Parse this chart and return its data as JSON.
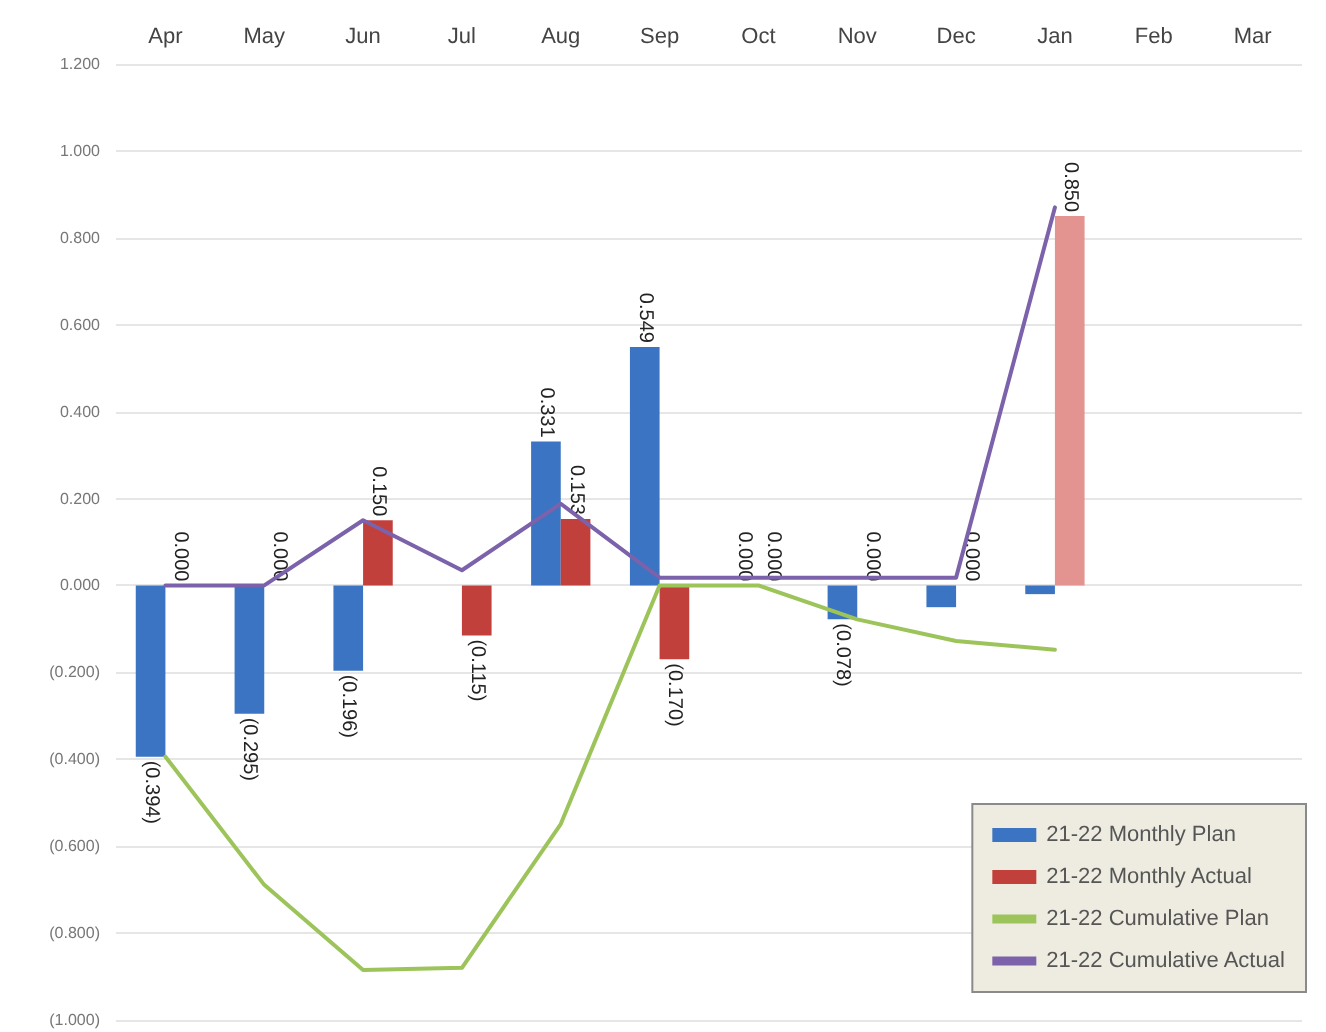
{
  "chart_data": {
    "type": "bar",
    "categories": [
      "Apr",
      "May",
      "Jun",
      "Jul",
      "Aug",
      "Sep",
      "Oct",
      "Nov",
      "Dec",
      "Jan",
      "Feb",
      "Mar"
    ],
    "series": [
      {
        "name": "21-22 Monthly Plan",
        "color": "#3b74c2",
        "values": [
          -0.394,
          -0.295,
          -0.196,
          null,
          0.331,
          0.549,
          0.0,
          -0.078,
          -0.05,
          -0.02,
          null,
          null
        ],
        "value_labels": [
          "(0.394)",
          "(0.295)",
          "(0.196)",
          null,
          "0.331",
          "0.549",
          "0.000",
          "(0.078)",
          null,
          null,
          null,
          null
        ]
      },
      {
        "name": "21-22 Monthly Actual",
        "color": "#c2403c",
        "colors": [
          "#c2403c",
          "#c2403c",
          "#c2403c",
          "#c2403c",
          "#c2403c",
          "#c2403c",
          "#c2403c",
          "#c2403c",
          "#c2403c",
          "#e39490",
          "#c2403c",
          "#c2403c"
        ],
        "values": [
          0.0,
          0.0,
          0.15,
          -0.115,
          0.153,
          -0.17,
          0.0,
          0.0,
          0.0,
          0.85,
          null,
          null
        ],
        "value_labels": [
          "0.000",
          "0.000",
          "0.150",
          "(0.115)",
          "0.153",
          "(0.170)",
          "0.000",
          "0.000",
          "0.000",
          "0.850",
          null,
          null
        ]
      },
      {
        "name": "21-22 Cumulative Plan",
        "type": "line",
        "color": "#9cc45a",
        "values": [
          -0.394,
          -0.689,
          -0.885,
          -0.88,
          -0.549,
          0.0,
          0.0,
          -0.078,
          -0.128,
          -0.148,
          null,
          null
        ]
      },
      {
        "name": "21-22 Cumulative Actual",
        "type": "line",
        "color": "#7b62aa",
        "values": [
          0.0,
          0.0,
          0.15,
          0.035,
          0.188,
          0.018,
          0.018,
          0.018,
          0.018,
          0.87,
          null,
          null
        ]
      }
    ],
    "ylim": [
      -1.0,
      1.2
    ],
    "yticks": [
      {
        "value": 1.2,
        "label": "1.200"
      },
      {
        "value": 1.0,
        "label": "1.000"
      },
      {
        "value": 0.8,
        "label": "0.800"
      },
      {
        "value": 0.6,
        "label": "0.600"
      },
      {
        "value": 0.4,
        "label": "0.400"
      },
      {
        "value": 0.2,
        "label": "0.200"
      },
      {
        "value": 0.0,
        "label": "0.000"
      },
      {
        "value": -0.2,
        "label": "(0.200)"
      },
      {
        "value": -0.4,
        "label": "(0.400)"
      },
      {
        "value": -0.6,
        "label": "(0.600)"
      },
      {
        "value": -0.8,
        "label": "(0.800)"
      },
      {
        "value": -1.0,
        "label": "(1.000)"
      }
    ],
    "grid": "y",
    "legend": "bottom right",
    "marker": "none",
    "line_style": "solid"
  }
}
